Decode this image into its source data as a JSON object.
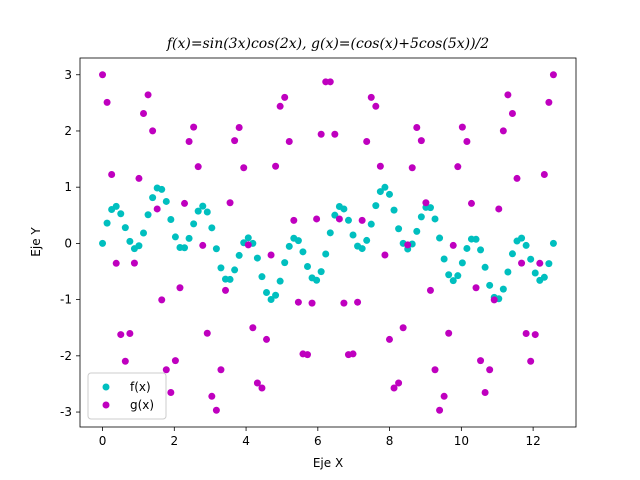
{
  "chart_data": {
    "type": "scatter",
    "title": "f(x)=sin(3x)cos(2x), g(x)=(cos(x)+5cos(5x))/2",
    "x_label": "Eje X",
    "y_label": "Eje Y",
    "x": [
      0,
      0.127,
      0.254,
      0.381,
      0.508,
      0.635,
      0.762,
      0.889,
      1.015,
      1.142,
      1.269,
      1.396,
      1.523,
      1.65,
      1.777,
      1.904,
      2.031,
      2.158,
      2.285,
      2.412,
      2.539,
      2.666,
      2.793,
      2.919,
      3.046,
      3.173,
      3.3,
      3.427,
      3.554,
      3.681,
      3.808,
      3.935,
      4.062,
      4.189,
      4.316,
      4.443,
      4.57,
      4.697,
      4.823,
      4.95,
      5.077,
      5.204,
      5.331,
      5.458,
      5.585,
      5.712,
      5.839,
      5.966,
      6.093,
      6.22,
      6.347,
      6.474,
      6.601,
      6.727,
      6.854,
      6.981,
      7.108,
      7.235,
      7.362,
      7.489,
      7.616,
      7.743,
      7.87,
      7.997,
      8.124,
      8.251,
      8.378,
      8.505,
      8.631,
      8.758,
      8.885,
      9.012,
      9.139,
      9.266,
      9.393,
      9.52,
      9.647,
      9.774,
      9.901,
      10.028,
      10.155,
      10.282,
      10.409,
      10.535,
      10.662,
      10.789,
      10.916,
      11.043,
      11.17,
      11.297,
      11.424,
      11.551,
      11.678,
      11.805,
      11.932,
      12.059,
      12.186,
      12.313,
      12.439,
      12.566
    ],
    "series": [
      {
        "name": "f(x)",
        "color": "#00bfbf",
        "values": [
          0,
          0.36,
          0.603,
          0.658,
          0.527,
          0.281,
          0.036,
          -0.094,
          -0.042,
          0.185,
          0.509,
          0.814,
          0.985,
          0.96,
          0.746,
          0.425,
          0.115,
          -0.073,
          -0.077,
          0.09,
          0.347,
          0.574,
          0.663,
          0.558,
          0.277,
          -0.095,
          -0.435,
          -0.636,
          -0.641,
          -0.472,
          -0.214,
          0.011,
          0.099,
          0,
          -0.261,
          -0.592,
          -0.873,
          -0.998,
          -0.922,
          -0.672,
          -0.342,
          -0.053,
          0.092,
          0.049,
          -0.15,
          -0.411,
          -0.613,
          -0.656,
          -0.502,
          -0.188,
          0.188,
          0.502,
          0.656,
          0.613,
          0.411,
          0.15,
          -0.049,
          -0.092,
          0.053,
          0.342,
          0.672,
          0.922,
          0.998,
          0.873,
          0.592,
          0.261,
          0,
          -0.099,
          -0.011,
          0.214,
          0.472,
          0.641,
          0.636,
          0.435,
          0.095,
          -0.277,
          -0.558,
          -0.663,
          -0.574,
          -0.347,
          -0.09,
          0.077,
          0.073,
          -0.115,
          -0.425,
          -0.746,
          -0.96,
          -0.985,
          -0.814,
          -0.509,
          -0.185,
          0.042,
          0.094,
          -0.036,
          -0.281,
          -0.527,
          -0.658,
          -0.603,
          -0.36,
          0
        ]
      },
      {
        "name": "g(x)",
        "color": "#bf00bf",
        "values": [
          3,
          2.509,
          1.226,
          -0.354,
          -1.622,
          -2.096,
          -1.603,
          -0.351,
          1.156,
          2.311,
          2.643,
          2.002,
          0.613,
          -1.005,
          -2.247,
          -2.652,
          -2.085,
          -0.789,
          0.711,
          1.812,
          2.068,
          1.365,
          -0.036,
          -1.598,
          -2.72,
          -2.968,
          -2.247,
          -0.836,
          0.723,
          1.828,
          2.062,
          1.346,
          -0.026,
          -1.5,
          -2.483,
          -2.572,
          -1.708,
          -0.206,
          1.373,
          2.439,
          2.598,
          1.813,
          0.409,
          -1.046,
          -1.966,
          -1.978,
          -1.063,
          0.435,
          1.941,
          2.874,
          2.874,
          1.941,
          0.435,
          -1.063,
          -1.978,
          -1.966,
          -1.046,
          0.409,
          1.813,
          2.598,
          2.439,
          1.373,
          -0.206,
          -1.708,
          -2.572,
          -2.483,
          -1.5,
          -0.026,
          1.346,
          2.062,
          1.828,
          0.723,
          -0.836,
          -2.247,
          -2.968,
          -2.72,
          -1.598,
          -0.036,
          1.365,
          2.068,
          1.812,
          0.711,
          -0.789,
          -2.085,
          -2.652,
          -2.247,
          -1.005,
          0.613,
          2.002,
          2.643,
          2.311,
          1.156,
          -0.351,
          -1.603,
          -2.096,
          -1.622,
          -0.354,
          1.226,
          2.509,
          3
        ]
      }
    ],
    "xlim": [
      -0.628,
      13.195
    ],
    "ylim": [
      -3.266,
      3.298
    ],
    "xticks": [
      0,
      2,
      4,
      6,
      8,
      10,
      12
    ],
    "yticks": [
      -3,
      -2,
      -1,
      0,
      1,
      2,
      3
    ],
    "grid": false,
    "legend": "lower left"
  }
}
